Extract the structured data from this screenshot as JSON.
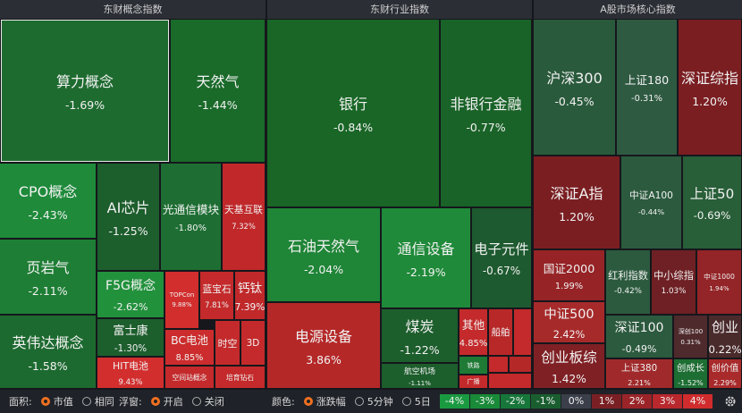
{
  "panels": [
    {
      "title": "东财概念指数",
      "tiles": [
        {
          "label": "算力概念",
          "change": "-1.69%"
        },
        {
          "label": "天然气",
          "change": "-1.44%"
        },
        {
          "label": "CPO概念",
          "change": "-2.43%"
        },
        {
          "label": "AI芯片",
          "change": "-1.25%"
        },
        {
          "label": "光通信模块",
          "change": "-1.80%"
        },
        {
          "label": "天基互联",
          "change": "7.32%"
        },
        {
          "label": "页岩气",
          "change": "-2.11%"
        },
        {
          "label": "F5G概念",
          "change": "-2.62%"
        },
        {
          "label": "TOPCon",
          "change": "9.88%"
        },
        {
          "label": "蓝宝石",
          "change": "7.81%"
        },
        {
          "label": "钙钛",
          "change": "7.39%"
        },
        {
          "label": "英伟达概念",
          "change": "-1.58%"
        },
        {
          "label": "富士康",
          "change": "-1.30%"
        },
        {
          "label": "HIT电池",
          "change": "9.43%"
        },
        {
          "label": "BC电池",
          "change": "8.85%"
        },
        {
          "label": "时空"
        },
        {
          "label": "3D"
        },
        {
          "label": "空间站概念"
        },
        {
          "label": "培育钻石"
        }
      ]
    },
    {
      "title": "东财行业指数",
      "tiles": [
        {
          "label": "银行",
          "change": "-0.84%"
        },
        {
          "label": "非银行金融",
          "change": "-0.77%"
        },
        {
          "label": "石油天然气",
          "change": "-2.04%"
        },
        {
          "label": "通信设备",
          "change": "-2.19%"
        },
        {
          "label": "电子元件",
          "change": "-0.67%"
        },
        {
          "label": "电源设备",
          "change": "3.86%"
        },
        {
          "label": "煤炭",
          "change": "-1.22%"
        },
        {
          "label": "航空机场",
          "change": "-1.11%"
        },
        {
          "label": "其他",
          "change": "4.85%"
        },
        {
          "label": "船舶"
        },
        {
          "label": "铁路"
        },
        {
          "label": "广播"
        }
      ]
    },
    {
      "title": "A股市场核心指数",
      "tiles": [
        {
          "label": "沪深300",
          "change": "-0.45%"
        },
        {
          "label": "上证180",
          "change": "-0.31%"
        },
        {
          "label": "深证综指",
          "change": "1.20%"
        },
        {
          "label": "深证A指",
          "change": "1.20%"
        },
        {
          "label": "中证A100",
          "change": "-0.44%"
        },
        {
          "label": "上证50",
          "change": "-0.69%"
        },
        {
          "label": "国证2000",
          "change": "1.99%"
        },
        {
          "label": "红利指数",
          "change": "-0.42%"
        },
        {
          "label": "中小综指",
          "change": "1.03%"
        },
        {
          "label": "中证1000",
          "change": "1.94%"
        },
        {
          "label": "中证500",
          "change": "2.42%"
        },
        {
          "label": "深证100",
          "change": "-0.49%"
        },
        {
          "label": "深创100",
          "change": "0.31%"
        },
        {
          "label": "创业",
          "change": "0.22%"
        },
        {
          "label": "创业板综",
          "change": "1.42%"
        },
        {
          "label": "上证380",
          "change": "2.21%"
        },
        {
          "label": "创成长",
          "change": "-1.52%"
        },
        {
          "label": "创价值",
          "change": "2.29%"
        }
      ]
    }
  ],
  "controls": [
    {
      "label": "面积:",
      "options": [
        "市值",
        "相同"
      ]
    },
    {
      "label": "浮窗:",
      "options": [
        "开启",
        "关闭"
      ]
    },
    {
      "label": "颜色:",
      "options": [
        "涨跌幅",
        "5分钟",
        "5日"
      ]
    }
  ],
  "legend": [
    "-4%",
    "-3%",
    "-2%",
    "-1%",
    "0%",
    "1%",
    "2%",
    "3%",
    "4%"
  ]
}
